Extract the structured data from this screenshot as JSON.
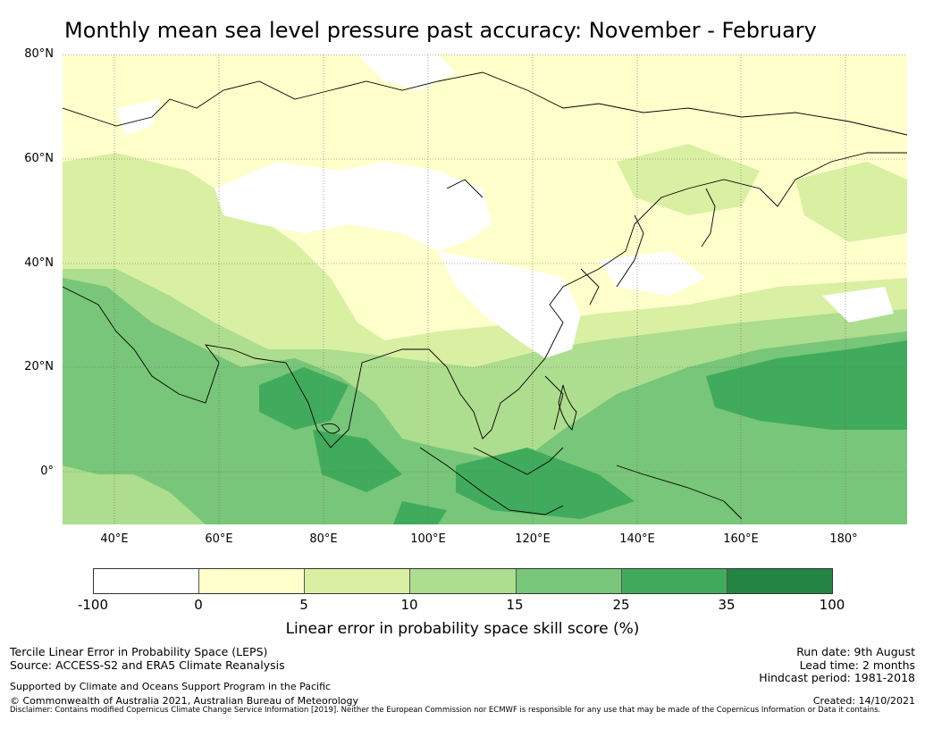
{
  "title": "Monthly mean sea level pressure past accuracy: November - February",
  "map": {
    "lat_labels": [
      "80°N",
      "60°N",
      "40°N",
      "20°N",
      "0°"
    ],
    "lon_labels": [
      "40°E",
      "60°E",
      "80°E",
      "100°E",
      "120°E",
      "140°E",
      "160°E",
      "180°"
    ],
    "extent": {
      "lon_min": 30,
      "lon_max": 192,
      "lat_min": -10,
      "lat_max": 80
    },
    "bin_colors": [
      "#ffffff",
      "#ffffcc",
      "#d9f0a3",
      "#addd8e",
      "#78c679",
      "#41ab5d",
      "#238443"
    ]
  },
  "colorbar": {
    "ticks": [
      "-100",
      "0",
      "5",
      "10",
      "15",
      "25",
      "35",
      "100"
    ],
    "label": "Linear error in probability space skill score (%)"
  },
  "footer": {
    "line1": "Tercile Linear Error in Probability Space (LEPS)",
    "line2": "Source: ACCESS-S2 and ERA5 Climate Reanalysis",
    "line3": "Supported by Climate and Oceans Support Program in the Pacific",
    "line4": "© Commonwealth of Australia 2021, Australian Bureau of Meteorology",
    "run_date": "Run date: 9th August",
    "lead_time": "Lead time: 2 months",
    "hindcast": "Hindcast period: 1981-2018",
    "created": "Created: 14/10/2021",
    "disclaimer": "Disclaimer: Contains modified Copernicus Climate Change Service Information [2019]. Neither the European Commission nor ECMWF is responsible for any use that may be made of the Copernicus Information or Data it contains."
  }
}
